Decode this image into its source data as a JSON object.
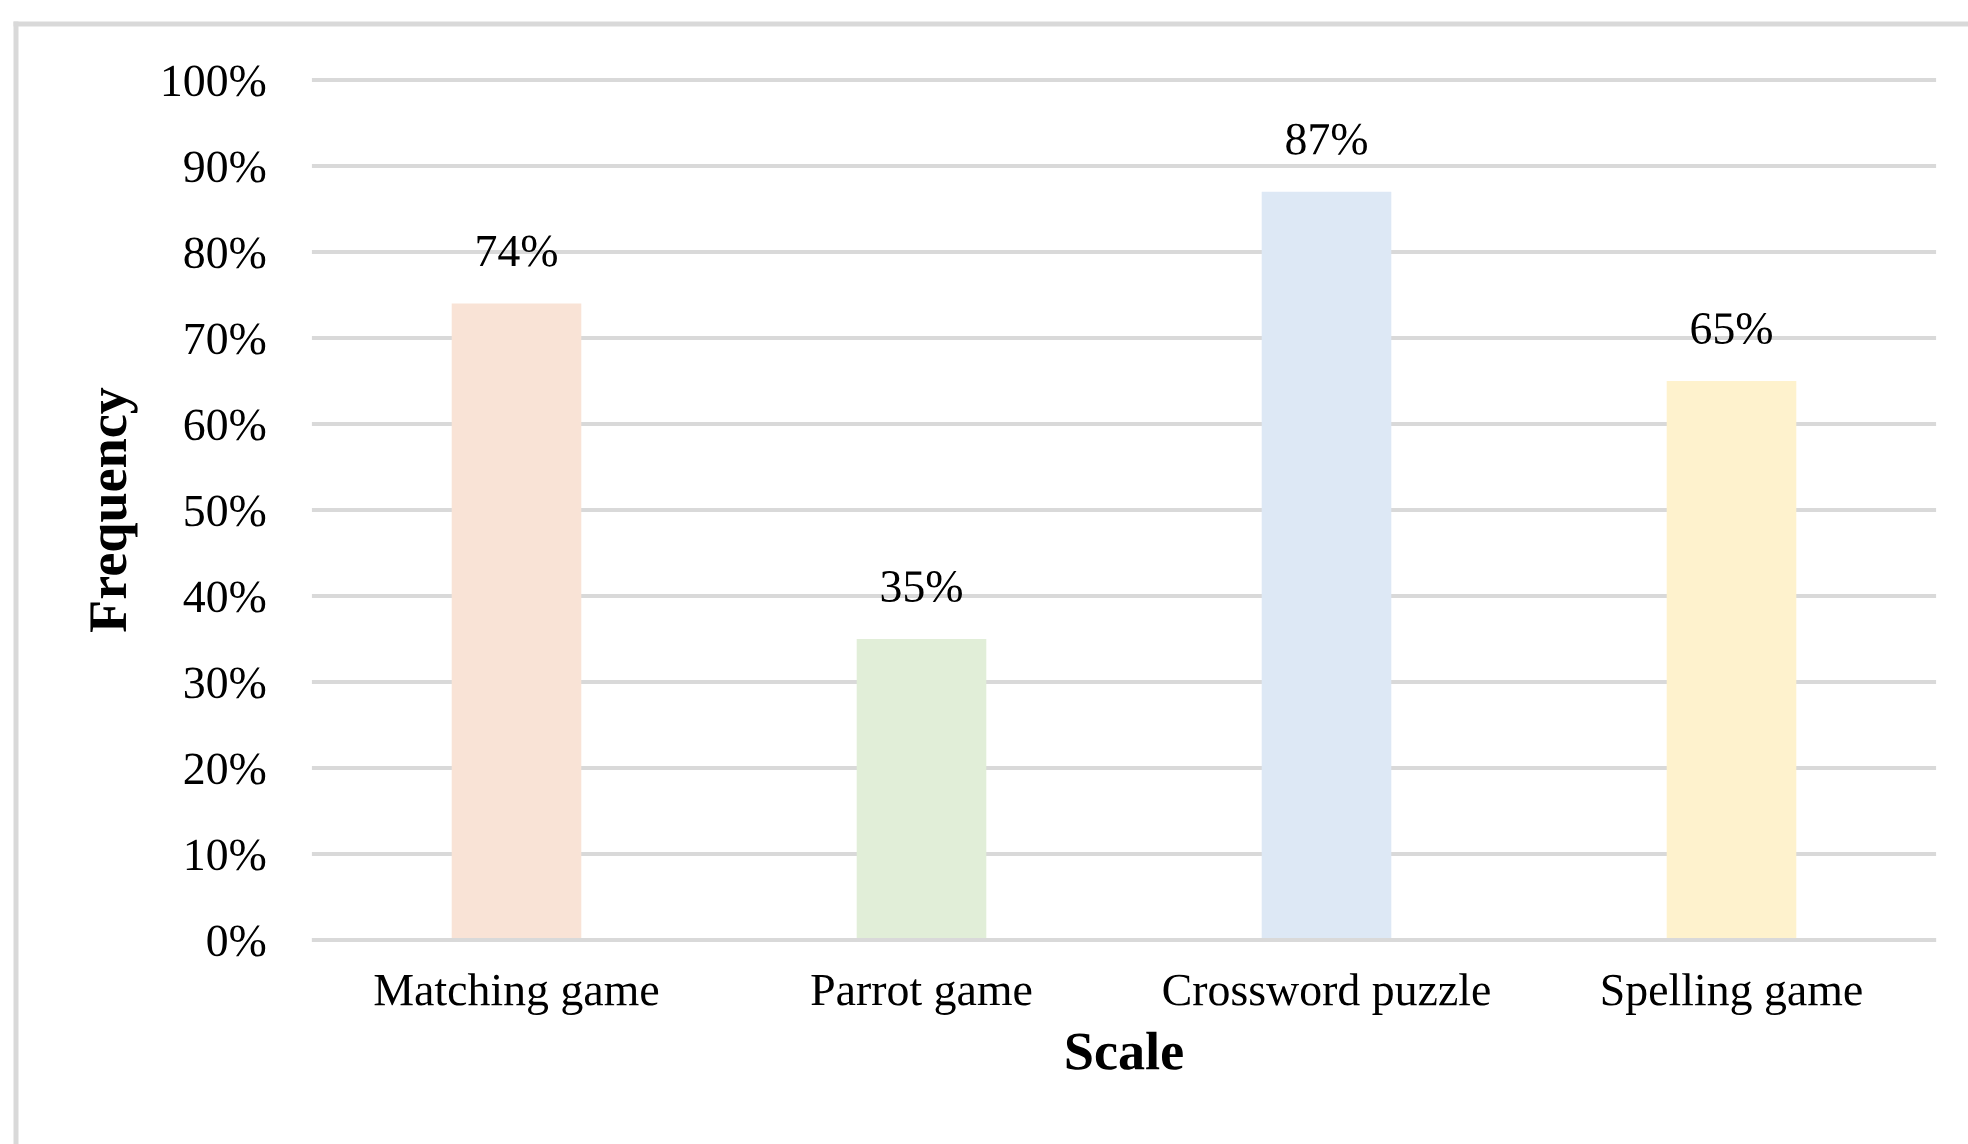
{
  "chart_data": {
    "type": "bar",
    "xlabel": "Scale",
    "ylabel": "Frequency",
    "categories": [
      "Matching game",
      "Parrot game",
      "Crossword puzzle",
      "Spelling game"
    ],
    "values": [
      74,
      35,
      87,
      65
    ],
    "colors": [
      "#f9e3d6",
      "#e1eed8",
      "#dde8f5",
      "#fef2cd"
    ],
    "value_labels": [
      "74%",
      "35%",
      "87%",
      "65%"
    ],
    "ylim": [
      0,
      100
    ],
    "yticks": [
      {
        "value": 0,
        "label": "0%"
      },
      {
        "value": 10,
        "label": "10%"
      },
      {
        "value": 20,
        "label": "20%"
      },
      {
        "value": 30,
        "label": "30%"
      },
      {
        "value": 40,
        "label": "40%"
      },
      {
        "value": 50,
        "label": "50%"
      },
      {
        "value": 60,
        "label": "60%"
      },
      {
        "value": 70,
        "label": "70%"
      },
      {
        "value": 80,
        "label": "80%"
      },
      {
        "value": 90,
        "label": "90%"
      },
      {
        "value": 100,
        "label": "100%"
      }
    ],
    "grid": "y",
    "legend": false
  }
}
